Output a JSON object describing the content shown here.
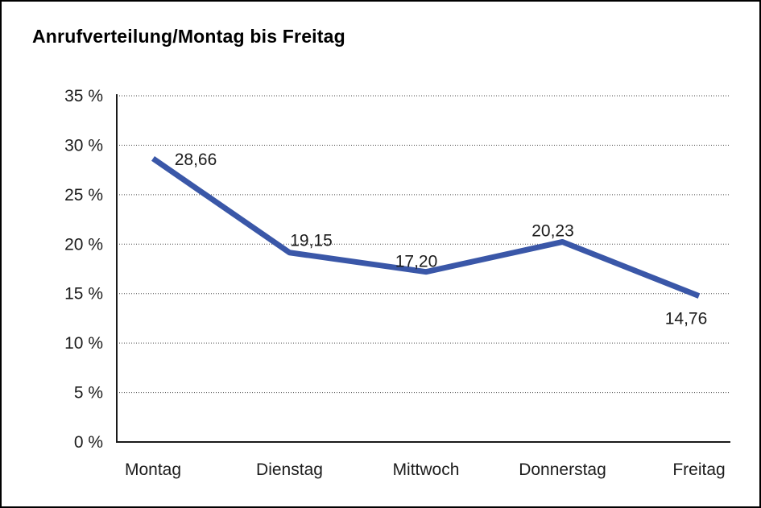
{
  "chart_data": {
    "type": "line",
    "title": "Anrufverteilung/Montag bis Freitag",
    "categories": [
      "Montag",
      "Dienstag",
      "Mittwoch",
      "Donnerstag",
      "Freitag"
    ],
    "values": [
      28.66,
      19.15,
      17.2,
      20.23,
      14.76
    ],
    "point_labels": [
      "28,66",
      "19,15",
      "17,20",
      "20,23",
      "14,76"
    ],
    "series_name": "Anrufverteilung",
    "xlabel": "",
    "ylabel": "",
    "ylim": [
      0,
      35
    ],
    "y_tick_step": 5,
    "y_tick_labels": [
      "0 %",
      "5 %",
      "10 %",
      "15 %",
      "20 %",
      "25 %",
      "30 %",
      "35 %"
    ],
    "grid": "dotted-horizontal",
    "legend": "none",
    "line_color": "#3A57A8",
    "axis_color": "#1a1a1a",
    "grid_color": "#4a4a4a",
    "label_color": "#1c1c1c"
  }
}
